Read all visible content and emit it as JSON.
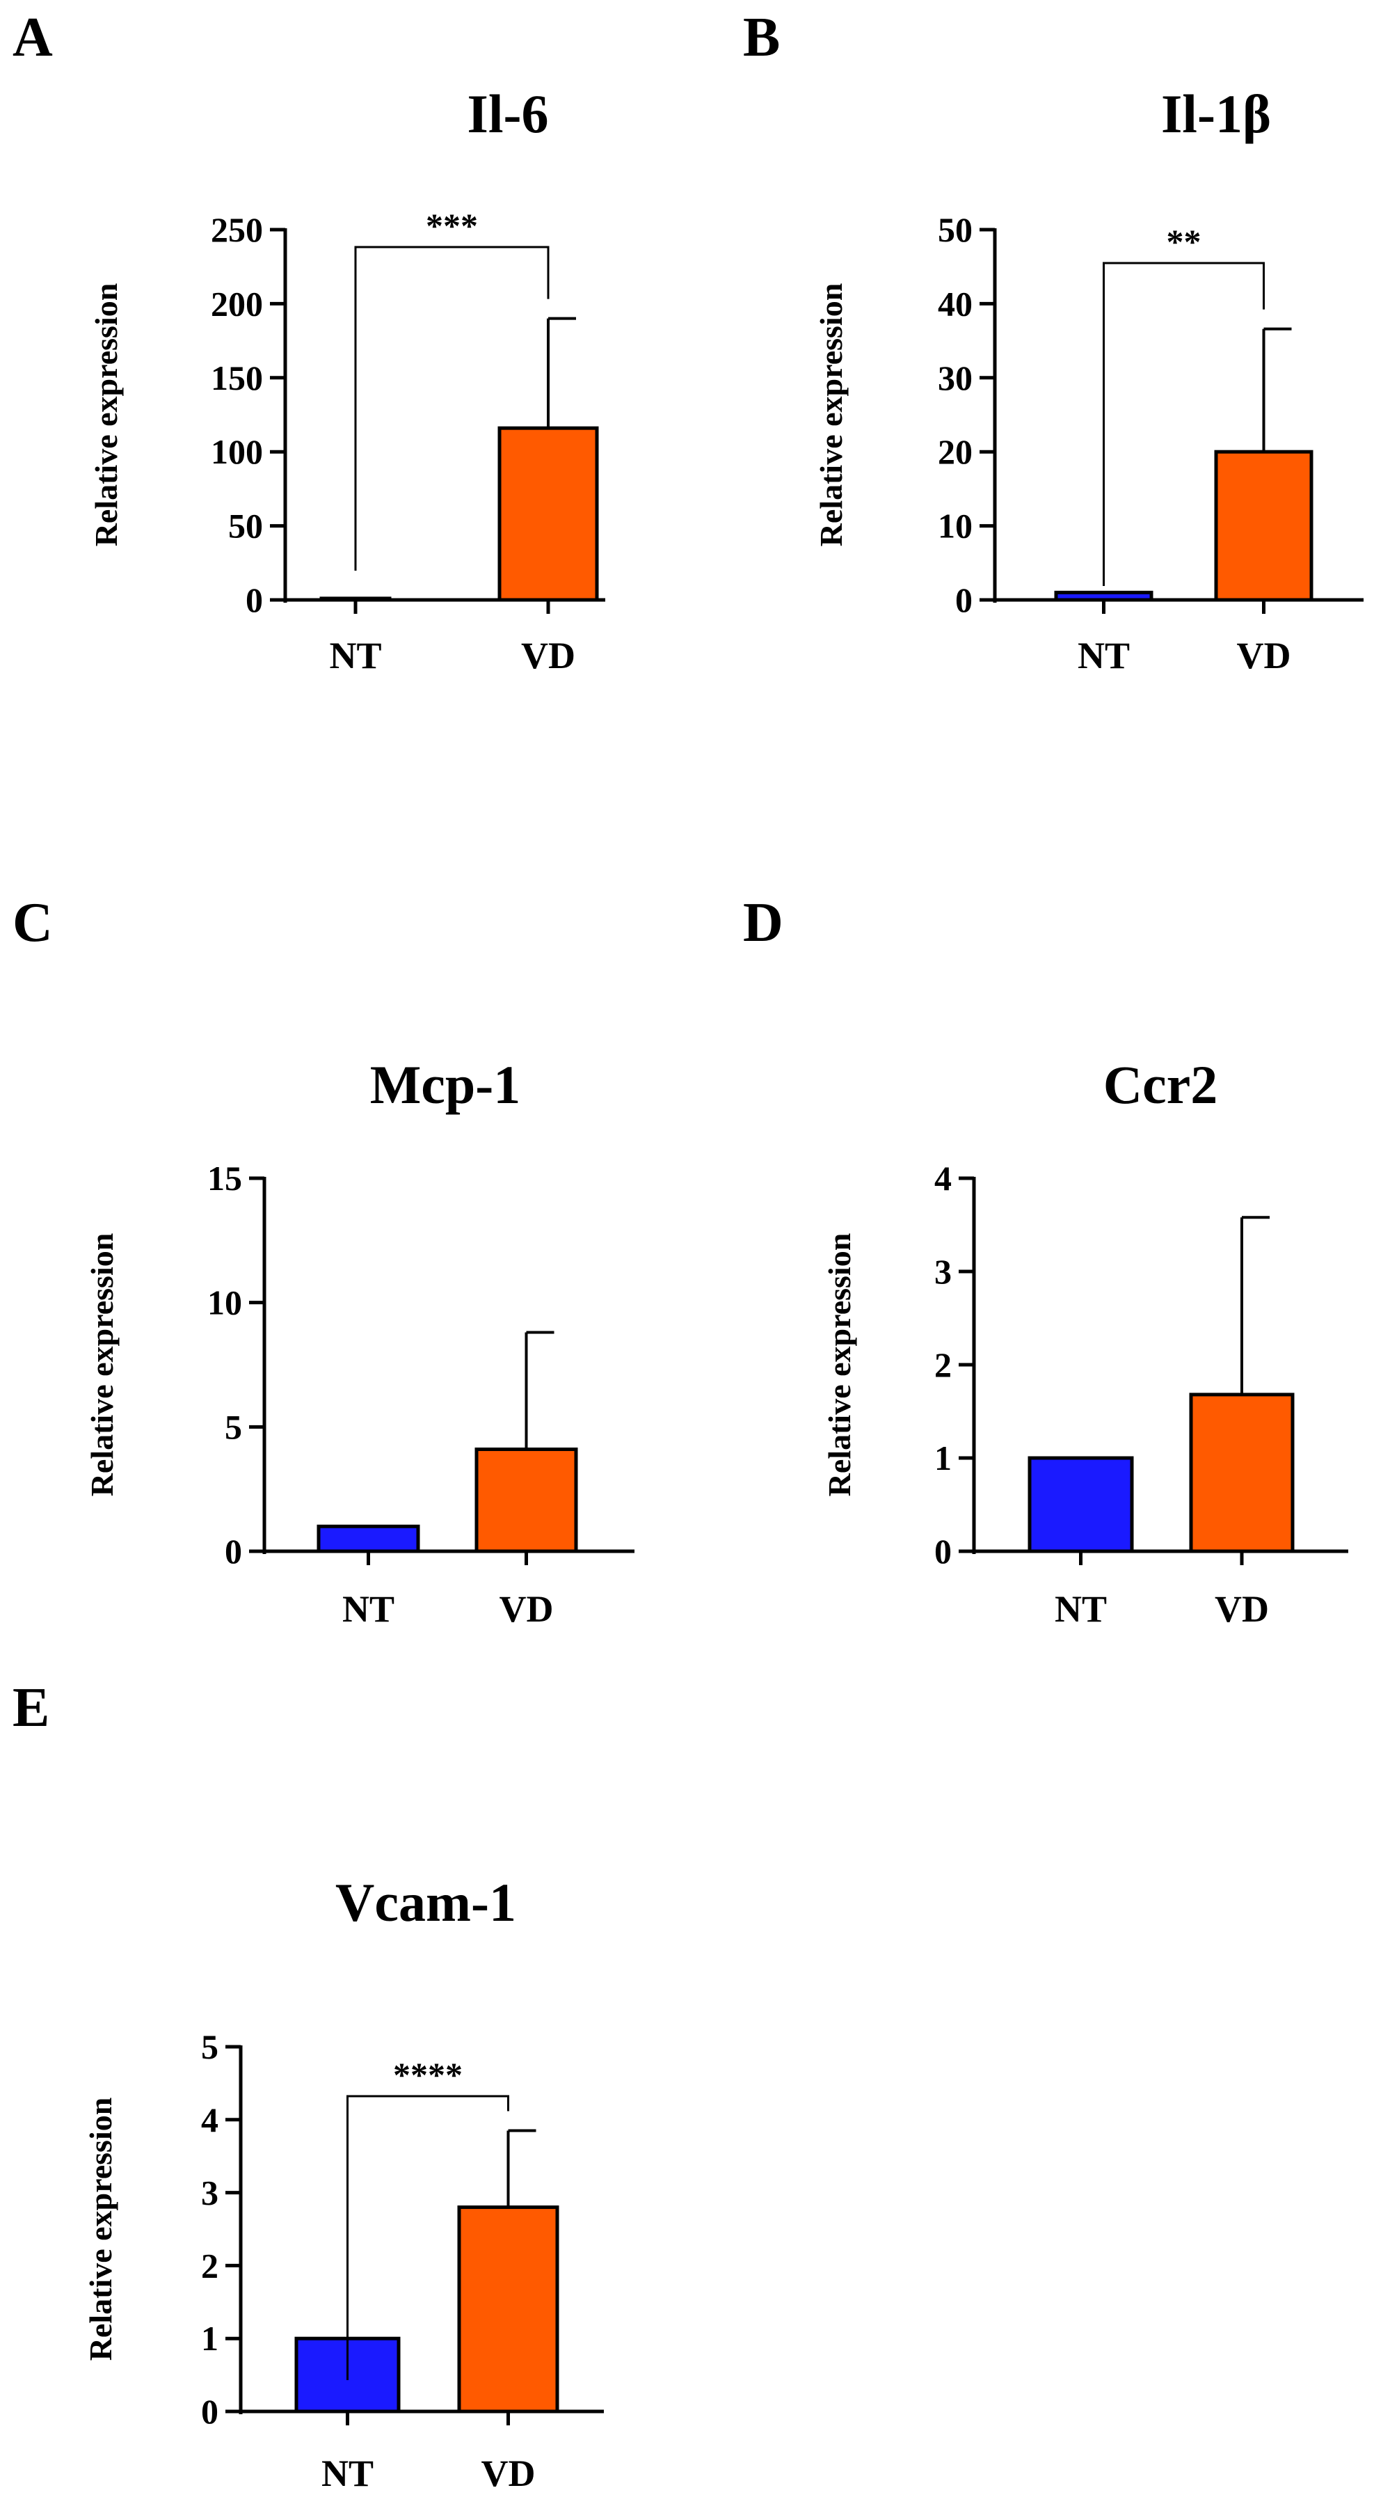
{
  "colors": {
    "NT": "#1a1aff",
    "VD": "#ff5a00",
    "axis": "#000000"
  },
  "chart_data": [
    {
      "panel": "A",
      "type": "bar",
      "title": "Il-6",
      "ylabel": "Relative expression",
      "xlabel": "",
      "categories": [
        "NT",
        "VD"
      ],
      "values": [
        1,
        116
      ],
      "errors": [
        0,
        74
      ],
      "ylim": [
        0,
        250
      ],
      "yticks": [
        0,
        50,
        100,
        150,
        200,
        250
      ],
      "significance": "***",
      "grid": false
    },
    {
      "panel": "B",
      "type": "bar",
      "title": "Il-1β",
      "ylabel": "Relative expression",
      "xlabel": "",
      "categories": [
        "NT",
        "VD"
      ],
      "values": [
        1,
        20
      ],
      "errors": [
        0,
        16.6
      ],
      "ylim": [
        0,
        50
      ],
      "yticks": [
        0,
        10,
        20,
        30,
        40,
        50
      ],
      "significance": "**",
      "grid": false
    },
    {
      "panel": "C",
      "type": "bar",
      "title": "Mcp-1",
      "ylabel": "Relative expression",
      "xlabel": "",
      "categories": [
        "NT",
        "VD"
      ],
      "values": [
        1,
        4.1
      ],
      "errors": [
        0,
        4.7
      ],
      "ylim": [
        0,
        15
      ],
      "yticks": [
        0,
        5,
        10,
        15
      ],
      "significance": "",
      "grid": false
    },
    {
      "panel": "D",
      "type": "bar",
      "title": "Ccr2",
      "ylabel": "Relative expression",
      "xlabel": "",
      "categories": [
        "NT",
        "VD"
      ],
      "values": [
        1,
        1.68
      ],
      "errors": [
        0,
        1.9
      ],
      "ylim": [
        0,
        4
      ],
      "yticks": [
        0,
        1,
        2,
        3,
        4
      ],
      "significance": "",
      "grid": false
    },
    {
      "panel": "E",
      "type": "bar",
      "title": "Vcam-1",
      "ylabel": "Relative expression",
      "xlabel": "",
      "categories": [
        "NT",
        "VD"
      ],
      "values": [
        1,
        2.8
      ],
      "errors": [
        0,
        1.05
      ],
      "ylim": [
        0,
        5
      ],
      "yticks": [
        0,
        1,
        2,
        3,
        4,
        5
      ],
      "significance": "****",
      "grid": false
    }
  ]
}
